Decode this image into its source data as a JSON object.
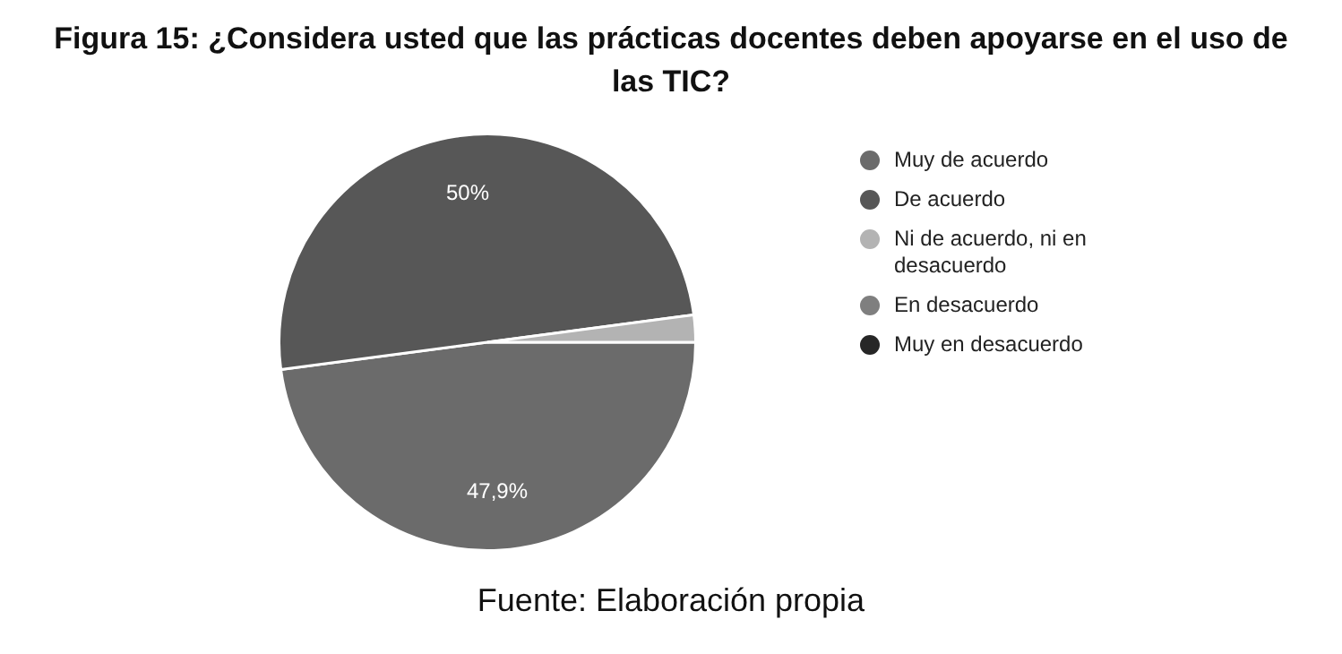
{
  "chart_data": {
    "type": "pie",
    "title": "Figura 15: ¿Considera usted que las prácticas docentes deben apoyarse en el uso de las TIC?",
    "categories": [
      "Muy de acuerdo",
      "De acuerdo",
      "Ni de acuerdo, ni en desacuerdo",
      "En desacuerdo",
      "Muy en desacuerdo"
    ],
    "values": [
      47.9,
      50,
      2.1,
      0,
      0
    ],
    "colors": [
      "#6b6b6b",
      "#575757",
      "#b3b3b3",
      "#7f7f7f",
      "#262626"
    ],
    "value_labels": [
      "47,9%",
      "50%",
      null,
      null,
      null
    ],
    "legend": "right",
    "annotations": [
      "Fuente: Elaboración propia"
    ]
  }
}
